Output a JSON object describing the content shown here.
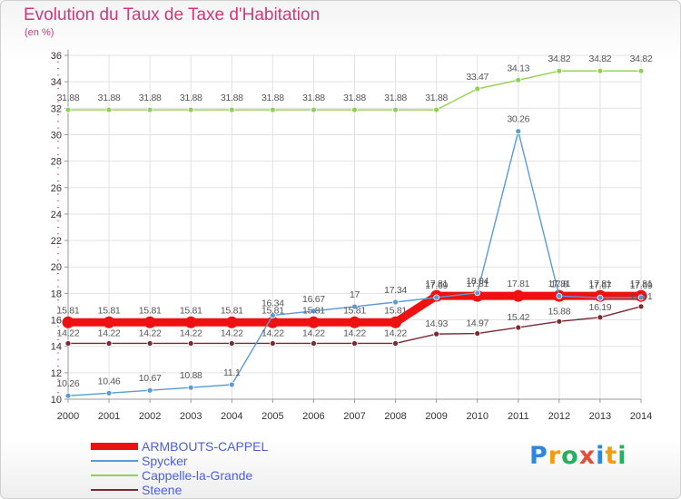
{
  "header": {
    "title": "Evolution du Taux de Taxe d'Habitation",
    "subtitle": "(en %)"
  },
  "colors": {
    "axis": "#999999",
    "grid": "#e2e2e2",
    "tick_text": "#333333",
    "label_text": "#555555"
  },
  "chart_data": {
    "type": "line",
    "title": "Evolution du Taux de Taxe d'Habitation",
    "subtitle": "(en %)",
    "xlabel": "",
    "ylabel": "",
    "x": [
      "2000",
      "2001",
      "2002",
      "2003",
      "2004",
      "2005",
      "2006",
      "2007",
      "2008",
      "2009",
      "2010",
      "2011",
      "2012",
      "2013",
      "2014"
    ],
    "yticks": [
      "10",
      "12",
      "14",
      "16",
      "18",
      "20",
      "22",
      "24",
      "26",
      "28",
      "30",
      "32",
      "34",
      "36"
    ],
    "ylim": [
      10,
      36
    ],
    "grid": true,
    "legend_position": "bottom-left",
    "series": [
      {
        "name": "ARMBOUTS-CAPPEL",
        "color": "#ee1111",
        "values": [
          15.81,
          15.81,
          15.81,
          15.81,
          15.81,
          15.81,
          15.81,
          15.81,
          15.81,
          17.81,
          17.81,
          17.81,
          17.81,
          17.81,
          17.81
        ],
        "labels": [
          "15.81",
          "15.81",
          "15.81",
          "15.81",
          "15.81",
          "15.81",
          "15.81",
          "15.81",
          "15.81",
          "17.81",
          "17.81",
          "17.81",
          "17.81",
          "17.81",
          "17.81"
        ]
      },
      {
        "name": "Spycker",
        "color": "#5b9bd5",
        "values": [
          10.26,
          10.46,
          10.67,
          10.88,
          11.1,
          16.34,
          16.67,
          17,
          17.34,
          17.69,
          18.04,
          30.26,
          17.8,
          17.67,
          17.69
        ],
        "labels": [
          "10.26",
          "10.46",
          "10.67",
          "10.88",
          "11.1",
          "16.34",
          "16.67",
          "17",
          "17.34",
          "17.69",
          "18.04",
          "30.26",
          "17.8",
          "17.67",
          "17.69"
        ]
      },
      {
        "name": "Cappelle-la-Grande",
        "color": "#8fd14f",
        "values": [
          31.88,
          31.88,
          31.88,
          31.88,
          31.88,
          31.88,
          31.88,
          31.88,
          31.88,
          31.88,
          33.47,
          34.13,
          34.82,
          34.82,
          34.82
        ],
        "labels": [
          "31.88",
          "31.88",
          "31.88",
          "31.88",
          "31.88",
          "31.88",
          "31.88",
          "31.88",
          "31.88",
          "31.88",
          "33.47",
          "34.13",
          "34.82",
          "34.82",
          "34.82"
        ]
      },
      {
        "name": "Steene",
        "color": "#7b2a33",
        "values": [
          14.22,
          14.22,
          14.22,
          14.22,
          14.22,
          14.22,
          14.22,
          14.22,
          14.22,
          14.93,
          14.97,
          15.42,
          15.88,
          16.19,
          17.01
        ],
        "labels": [
          "14.22",
          "14.22",
          "14.22",
          "14.22",
          "14.22",
          "14.22",
          "14.22",
          "14.22",
          "14.22",
          "14.93",
          "14.97",
          "15.42",
          "15.88",
          "16.19",
          "17.01"
        ]
      }
    ]
  },
  "logo": {
    "text": "Proxiti",
    "letter_colors": [
      "#2e86de",
      "#f39c12",
      "#27ae60",
      "#e74c3c",
      "#2e86de",
      "#f39c12",
      "#27ae60"
    ]
  }
}
